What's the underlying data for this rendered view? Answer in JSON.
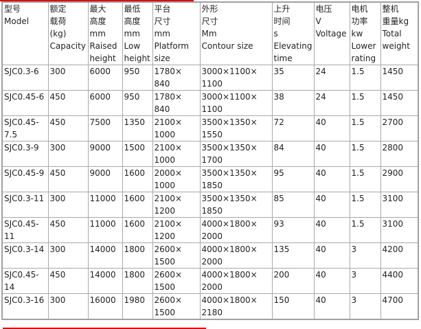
{
  "headers": [
    "型号\nModel",
    "额定\n载荷\n(kg)\nCapacity",
    "最大\n高度\nmm\nRaised\nheight",
    "最低\n高度\nmm\nLow\nheight",
    "平台\n尺寸\nmm\nPlatform\nsize",
    "外形\n尺寸\nMm\nContour size",
    "上升\n时间\ns\nElevating\ntime",
    "电压\nV\nVoltage",
    "电机\n功率\nkw\nLower\nrating",
    "整机\n重量kg\nTotal\nweight"
  ],
  "rows": [
    [
      "SJC0.3-6",
      "300",
      "6000",
      "950",
      "1780×\n840",
      "3000×1100×\n1100",
      "35",
      "24",
      "1.5",
      "1450"
    ],
    [
      "SJC0.45-6",
      "450",
      "6000",
      "950",
      "1780×\n840",
      "3000×1100×\n1100",
      "38",
      "24",
      "1.5",
      "1450"
    ],
    [
      "SJC0.45-\n7.5",
      "450",
      "7500",
      "1350",
      "2100×\n1000",
      "3500×1350×\n1550",
      "72",
      "40",
      "1.5",
      "2700"
    ],
    [
      "SJC0.3-9",
      "300",
      "9000",
      "1500",
      "2100×\n1000",
      "3500×1350×\n1700",
      "84",
      "40",
      "1.5",
      "2800"
    ],
    [
      "SJC0.45-9",
      "450",
      "9000",
      "1600",
      "2000×\n1000",
      "3500×1350×\n1850",
      "95",
      "40",
      "1.5",
      "2900"
    ],
    [
      "SJC0.3-11",
      "300",
      "11000",
      "1600",
      "2100×\n1200",
      "3500×1350×\n1850",
      "85",
      "40",
      "1.5",
      "3100"
    ],
    [
      "SJC0.45-\n11",
      "450",
      "11000",
      "1600",
      "2100×\n1200",
      "4000×1800×\n2000",
      "93",
      "40",
      "1.5",
      "3100"
    ],
    [
      "SJC0.3-14",
      "300",
      "14000",
      "1800",
      "2600×\n1500",
      "4000×1800×\n2000",
      "135",
      "40",
      "3",
      "4200"
    ],
    [
      "SJC0.45-\n14",
      "450",
      "14000",
      "1800",
      "2600×\n1500",
      "4000×1800×\n2000",
      "200",
      "40",
      "3",
      "4400"
    ],
    [
      "SJC0.3-16",
      "300",
      "16000",
      "1980",
      "2600×\n1500",
      "4000×1800×\n2180",
      "150",
      "40",
      "3",
      "4700"
    ]
  ],
  "colors": {
    "accent_line": "#e00000",
    "border": "#a8a8a8"
  }
}
